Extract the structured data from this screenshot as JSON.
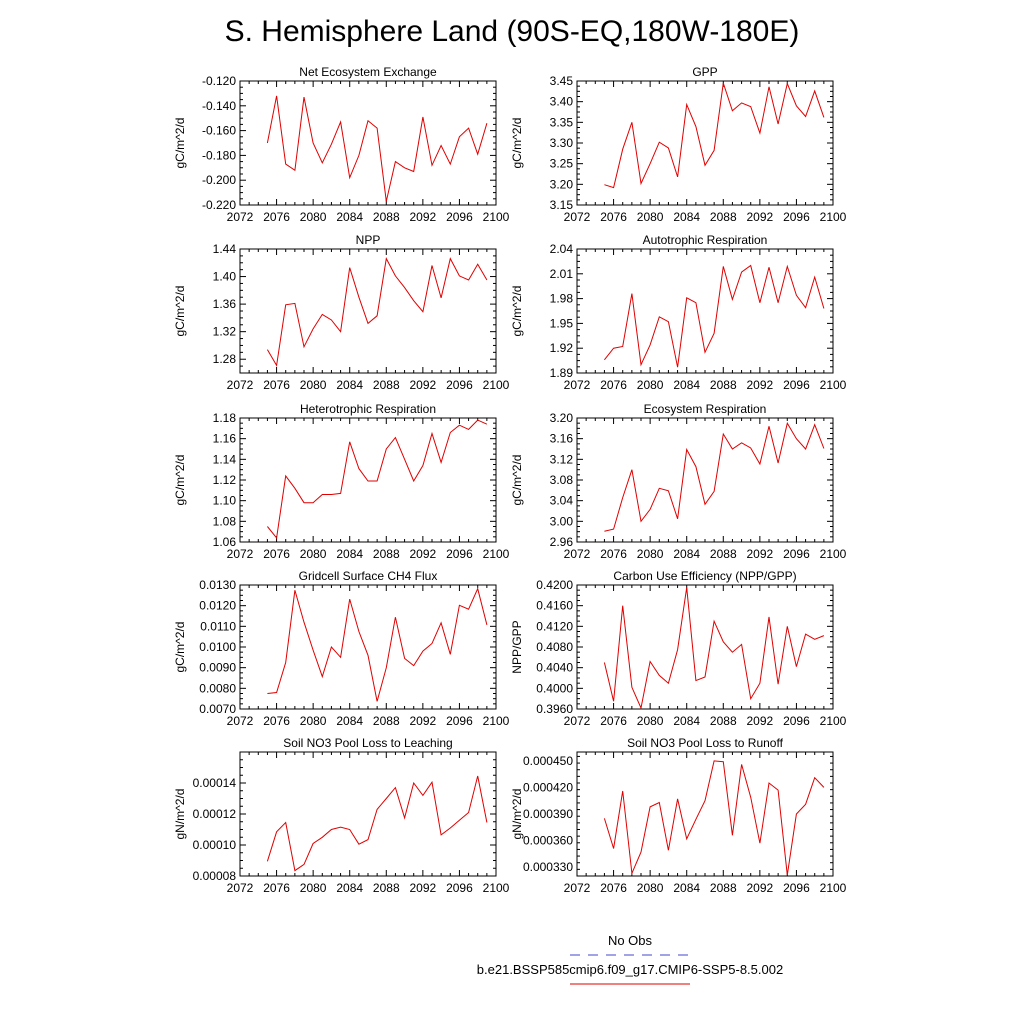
{
  "title": "S. Hemisphere Land (90S-EQ,180W-180E)",
  "legend": [
    {
      "label": "No Obs",
      "color": "#4444cc",
      "style": "dashed"
    },
    {
      "label": "b.e21.BSSP585cmip6.f09_g17.CMIP6-SSP5-8.5.002",
      "color": "#e00000",
      "style": "solid"
    }
  ],
  "chart_data": [
    {
      "type": "line",
      "title": "Net Ecosystem Exchange",
      "ylabel": "gC/m^2/d",
      "xlim": [
        2072,
        2100
      ],
      "xticks": [
        "2072",
        "2076",
        "2080",
        "2084",
        "2088",
        "2092",
        "2096",
        "2100"
      ],
      "ylim": [
        -0.22,
        -0.12
      ],
      "yticks": [
        "-0.120",
        "-0.140",
        "-0.160",
        "-0.180",
        "-0.200",
        "-0.220"
      ],
      "series": [
        {
          "color": "#e00000",
          "x": [
            2075,
            2076,
            2077,
            2078,
            2079,
            2080,
            2081,
            2082,
            2083,
            2084,
            2085,
            2086,
            2087,
            2088,
            2089,
            2090,
            2091,
            2092,
            2093,
            2094,
            2095,
            2096,
            2097,
            2098,
            2099
          ],
          "values": [
            -0.17,
            -0.132,
            -0.187,
            -0.192,
            -0.133,
            -0.17,
            -0.186,
            -0.171,
            -0.153,
            -0.198,
            -0.18,
            -0.152,
            -0.158,
            -0.217,
            -0.185,
            -0.19,
            -0.193,
            -0.149,
            -0.188,
            -0.172,
            -0.187,
            -0.165,
            -0.158,
            -0.179,
            -0.154
          ]
        }
      ]
    },
    {
      "type": "line",
      "title": "GPP",
      "ylabel": "gC/m^2/d",
      "xlim": [
        2072,
        2100
      ],
      "xticks": [
        "2072",
        "2076",
        "2080",
        "2084",
        "2088",
        "2092",
        "2096",
        "2100"
      ],
      "ylim": [
        3.15,
        3.45
      ],
      "yticks": [
        "3.45",
        "3.40",
        "3.35",
        "3.30",
        "3.25",
        "3.20",
        "3.15"
      ],
      "series": [
        {
          "color": "#e00000",
          "x": [
            2075,
            2076,
            2077,
            2078,
            2079,
            2080,
            2081,
            2082,
            2083,
            2084,
            2085,
            2086,
            2087,
            2088,
            2089,
            2090,
            2091,
            2092,
            2093,
            2094,
            2095,
            2096,
            2097,
            2098,
            2099
          ],
          "values": [
            3.199,
            3.192,
            3.285,
            3.35,
            3.202,
            3.25,
            3.302,
            3.288,
            3.218,
            3.393,
            3.34,
            3.246,
            3.282,
            3.445,
            3.378,
            3.397,
            3.388,
            3.324,
            3.436,
            3.346,
            3.444,
            3.39,
            3.364,
            3.426,
            3.362
          ]
        }
      ]
    },
    {
      "type": "line",
      "title": "NPP",
      "ylabel": "gC/m^2/d",
      "xlim": [
        2072,
        2100
      ],
      "xticks": [
        "2072",
        "2076",
        "2080",
        "2084",
        "2088",
        "2092",
        "2096",
        "2100"
      ],
      "ylim": [
        1.26,
        1.44
      ],
      "yticks": [
        "1.44",
        "1.40",
        "1.36",
        "1.32",
        "1.28"
      ],
      "series": [
        {
          "color": "#e00000",
          "x": [
            2075,
            2076,
            2077,
            2078,
            2079,
            2080,
            2081,
            2082,
            2083,
            2084,
            2085,
            2086,
            2087,
            2088,
            2089,
            2090,
            2091,
            2092,
            2093,
            2094,
            2095,
            2096,
            2097,
            2098,
            2099
          ],
          "values": [
            1.294,
            1.271,
            1.359,
            1.361,
            1.298,
            1.324,
            1.345,
            1.337,
            1.32,
            1.413,
            1.37,
            1.332,
            1.343,
            1.426,
            1.401,
            1.384,
            1.365,
            1.349,
            1.416,
            1.369,
            1.426,
            1.401,
            1.395,
            1.418,
            1.395
          ]
        }
      ]
    },
    {
      "type": "line",
      "title": "Autotrophic Respiration",
      "ylabel": "gC/m^2/d",
      "xlim": [
        2072,
        2100
      ],
      "xticks": [
        "2072",
        "2076",
        "2080",
        "2084",
        "2088",
        "2092",
        "2096",
        "2100"
      ],
      "ylim": [
        1.89,
        2.04
      ],
      "yticks": [
        "2.04",
        "2.01",
        "1.98",
        "1.95",
        "1.92",
        "1.89"
      ],
      "series": [
        {
          "color": "#e00000",
          "x": [
            2075,
            2076,
            2077,
            2078,
            2079,
            2080,
            2081,
            2082,
            2083,
            2084,
            2085,
            2086,
            2087,
            2088,
            2089,
            2090,
            2091,
            2092,
            2093,
            2094,
            2095,
            2096,
            2097,
            2098,
            2099
          ],
          "values": [
            1.906,
            1.92,
            1.922,
            1.986,
            1.9,
            1.924,
            1.958,
            1.952,
            1.897,
            1.981,
            1.975,
            1.915,
            1.938,
            2.019,
            1.979,
            2.012,
            2.02,
            1.975,
            2.018,
            1.975,
            2.019,
            1.984,
            1.969,
            2.006,
            1.968
          ]
        }
      ]
    },
    {
      "type": "line",
      "title": "Heterotrophic Respiration",
      "ylabel": "gC/m^2/d",
      "xlim": [
        2072,
        2100
      ],
      "xticks": [
        "2072",
        "2076",
        "2080",
        "2084",
        "2088",
        "2092",
        "2096",
        "2100"
      ],
      "ylim": [
        1.06,
        1.18
      ],
      "yticks": [
        "1.18",
        "1.16",
        "1.14",
        "1.12",
        "1.10",
        "1.08",
        "1.06"
      ],
      "series": [
        {
          "color": "#e00000",
          "x": [
            2075,
            2076,
            2077,
            2078,
            2079,
            2080,
            2081,
            2082,
            2083,
            2084,
            2085,
            2086,
            2087,
            2088,
            2089,
            2090,
            2091,
            2092,
            2093,
            2094,
            2095,
            2096,
            2097,
            2098,
            2099
          ],
          "values": [
            1.075,
            1.064,
            1.124,
            1.112,
            1.098,
            1.098,
            1.106,
            1.106,
            1.107,
            1.157,
            1.131,
            1.119,
            1.119,
            1.15,
            1.161,
            1.14,
            1.119,
            1.134,
            1.165,
            1.137,
            1.166,
            1.173,
            1.169,
            1.178,
            1.174
          ]
        }
      ]
    },
    {
      "type": "line",
      "title": "Ecosystem Respiration",
      "ylabel": "gC/m^2/d",
      "xlim": [
        2072,
        2100
      ],
      "xticks": [
        "2072",
        "2076",
        "2080",
        "2084",
        "2088",
        "2092",
        "2096",
        "2100"
      ],
      "ylim": [
        2.96,
        3.2
      ],
      "yticks": [
        "3.20",
        "3.16",
        "3.12",
        "3.08",
        "3.04",
        "3.00",
        "2.96"
      ],
      "series": [
        {
          "color": "#e00000",
          "x": [
            2075,
            2076,
            2077,
            2078,
            2079,
            2080,
            2081,
            2082,
            2083,
            2084,
            2085,
            2086,
            2087,
            2088,
            2089,
            2090,
            2091,
            2092,
            2093,
            2094,
            2095,
            2096,
            2097,
            2098,
            2099
          ],
          "values": [
            2.981,
            2.985,
            3.046,
            3.1,
            3.0,
            3.023,
            3.064,
            3.059,
            3.005,
            3.139,
            3.106,
            3.033,
            3.058,
            3.169,
            3.14,
            3.152,
            3.142,
            3.111,
            3.184,
            3.113,
            3.19,
            3.16,
            3.14,
            3.187,
            3.141
          ]
        }
      ]
    },
    {
      "type": "line",
      "title": "Gridcell Surface CH4 Flux",
      "ylabel": "gC/m^2/d",
      "xlim": [
        2072,
        2100
      ],
      "xticks": [
        "2072",
        "2076",
        "2080",
        "2084",
        "2088",
        "2092",
        "2096",
        "2100"
      ],
      "ylim": [
        0.007,
        0.013
      ],
      "yticks": [
        "0.0130",
        "0.0120",
        "0.0110",
        "0.0100",
        "0.0090",
        "0.0080",
        "0.0070"
      ],
      "series": [
        {
          "color": "#e00000",
          "x": [
            2075,
            2076,
            2077,
            2078,
            2079,
            2080,
            2081,
            2082,
            2083,
            2084,
            2085,
            2086,
            2087,
            2088,
            2089,
            2090,
            2091,
            2092,
            2093,
            2094,
            2095,
            2096,
            2097,
            2098,
            2099
          ],
          "values": [
            0.00775,
            0.0078,
            0.00925,
            0.01275,
            0.0112,
            0.00985,
            0.00857,
            0.01,
            0.0095,
            0.01232,
            0.01075,
            0.0096,
            0.00737,
            0.009,
            0.01144,
            0.00945,
            0.0091,
            0.0098,
            0.01017,
            0.01117,
            0.00964,
            0.01202,
            0.01183,
            0.01282,
            0.01107
          ]
        }
      ]
    },
    {
      "type": "line",
      "title": "Carbon Use Efficiency (NPP/GPP)",
      "ylabel": "NPP/GPP",
      "xlim": [
        2072,
        2100
      ],
      "xticks": [
        "2072",
        "2076",
        "2080",
        "2084",
        "2088",
        "2092",
        "2096",
        "2100"
      ],
      "ylim": [
        0.396,
        0.42
      ],
      "yticks": [
        "0.4200",
        "0.4160",
        "0.4120",
        "0.4080",
        "0.4040",
        "0.4000",
        "0.3960"
      ],
      "series": [
        {
          "color": "#e00000",
          "x": [
            2075,
            2076,
            2077,
            2078,
            2079,
            2080,
            2081,
            2082,
            2083,
            2084,
            2085,
            2086,
            2087,
            2088,
            2089,
            2090,
            2091,
            2092,
            2093,
            2094,
            2095,
            2096,
            2097,
            2098,
            2099
          ],
          "values": [
            0.405,
            0.3975,
            0.416,
            0.4002,
            0.3962,
            0.4052,
            0.4025,
            0.401,
            0.4075,
            0.4195,
            0.4015,
            0.4022,
            0.413,
            0.409,
            0.407,
            0.4085,
            0.398,
            0.401,
            0.4138,
            0.4008,
            0.412,
            0.4042,
            0.4105,
            0.4095,
            0.4102
          ]
        }
      ]
    },
    {
      "type": "line",
      "title": "Soil NO3 Pool Loss to Leaching",
      "ylabel": "gN/m^2/d",
      "xlim": [
        2072,
        2100
      ],
      "xticks": [
        "2072",
        "2076",
        "2080",
        "2084",
        "2088",
        "2092",
        "2096",
        "2100"
      ],
      "ylim": [
        8e-05,
        0.00016
      ],
      "yticks": [
        "0.00014",
        "0.00012",
        "0.00010",
        "0.00008"
      ],
      "series": [
        {
          "color": "#e00000",
          "x": [
            2075,
            2076,
            2077,
            2078,
            2079,
            2080,
            2081,
            2082,
            2083,
            2084,
            2085,
            2086,
            2087,
            2088,
            2089,
            2090,
            2091,
            2092,
            2093,
            2094,
            2095,
            2096,
            2097,
            2098,
            2099
          ],
          "values": [
            8.95e-05,
            0.0001085,
            0.0001145,
            8.35e-05,
            8.75e-05,
            0.000101,
            0.000105,
            0.00011,
            0.0001115,
            0.00011,
            0.0001005,
            0.0001035,
            0.000123,
            0.00013,
            0.000137,
            0.0001175,
            0.00014,
            0.000132,
            0.0001405,
            0.0001065,
            0.000111,
            0.000116,
            0.000121,
            0.0001445,
            0.0001145
          ]
        }
      ]
    },
    {
      "type": "line",
      "title": "Soil NO3 Pool Loss to Runoff",
      "ylabel": "gN/m^2/d",
      "xlim": [
        2072,
        2100
      ],
      "xticks": [
        "2072",
        "2076",
        "2080",
        "2084",
        "2088",
        "2092",
        "2096",
        "2100"
      ],
      "ylim": [
        0.00032,
        0.00046
      ],
      "yticks": [
        "0.000450",
        "0.000420",
        "0.000390",
        "0.000360",
        "0.000330"
      ],
      "series": [
        {
          "color": "#e00000",
          "x": [
            2075,
            2076,
            2077,
            2078,
            2079,
            2080,
            2081,
            2082,
            2083,
            2084,
            2085,
            2086,
            2087,
            2088,
            2089,
            2090,
            2091,
            2092,
            2093,
            2094,
            2095,
            2096,
            2097,
            2098,
            2099
          ],
          "values": [
            0.000385,
            0.000351,
            0.000416,
            0.000323,
            0.000347,
            0.000398,
            0.000403,
            0.000349,
            0.000407,
            0.000362,
            0.000384,
            0.000405,
            0.00045,
            0.000449,
            0.000366,
            0.000446,
            0.000409,
            0.000357,
            0.000425,
            0.000417,
            0.000321,
            0.00039,
            0.000401,
            0.000431,
            0.00042
          ]
        }
      ]
    }
  ]
}
